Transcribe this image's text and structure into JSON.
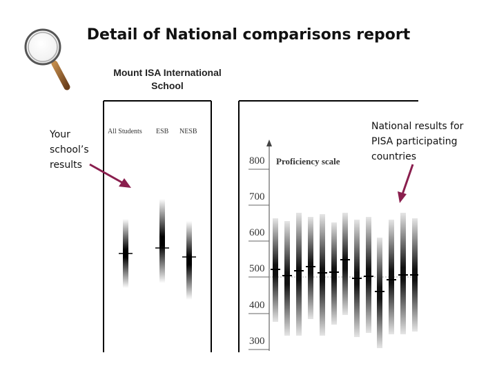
{
  "title": "Detail of National comparisons report",
  "report": {
    "school_name_line1": "Mount ISA International",
    "school_name_line2": "School",
    "columns": [
      "All Students",
      "ESB",
      "NESB"
    ],
    "scale_title": "Proficiency scale",
    "scale_ticks": [
      "800",
      "700",
      "600",
      "500",
      "400",
      "300"
    ]
  },
  "annotations": {
    "school_results_line1": "Your",
    "school_results_line2": "school’s",
    "school_results_line3": "results",
    "national_results_line1": "National results for",
    "national_results_line2": "PISA participating",
    "national_results_line3": "countries"
  },
  "icons": {
    "magnifier": "magnifier-icon",
    "arrow_color": "#8a1f4e"
  }
}
